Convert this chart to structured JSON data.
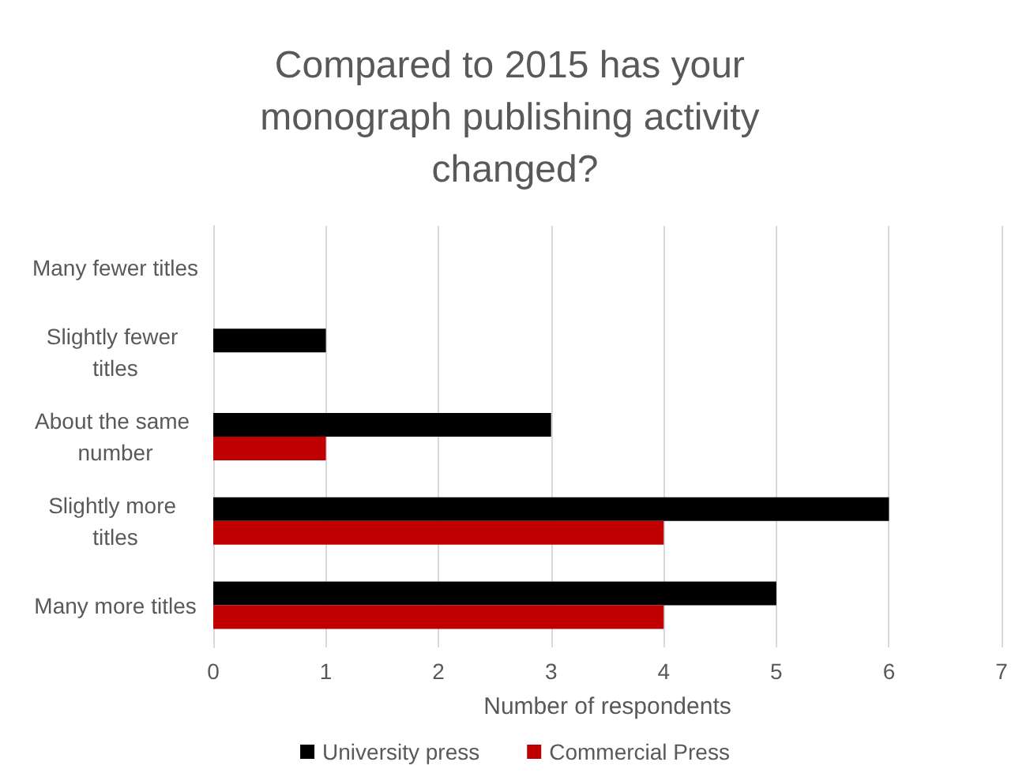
{
  "chart_data": {
    "type": "bar",
    "orientation": "horizontal",
    "title": "Compared to 2015 has your monograph publishing activity changed?",
    "xlabel": "Number of respondents",
    "categories": [
      "Many fewer titles",
      "Slightly fewer titles",
      "About the same number",
      "Slightly more titles",
      "Many more titles"
    ],
    "series": [
      {
        "name": "University press",
        "color": "#000000",
        "values": [
          0,
          1,
          3,
          6,
          5
        ]
      },
      {
        "name": "Commercial Press",
        "color": "#c00000",
        "values": [
          0,
          0,
          1,
          4,
          4
        ]
      }
    ],
    "xlim": [
      0,
      7
    ],
    "xticks": [
      0,
      1,
      2,
      3,
      4,
      5,
      6,
      7
    ],
    "grid": "x",
    "legend": "bottom"
  }
}
